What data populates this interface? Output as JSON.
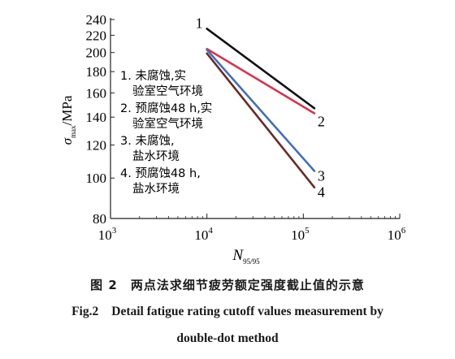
{
  "chart_data": {
    "type": "line",
    "x_scale": "log",
    "y_scale": "log",
    "xlim": [
      1000,
      1000000
    ],
    "ylim": [
      80,
      240
    ],
    "x_ticks": [
      1000,
      10000,
      100000,
      1000000
    ],
    "x_tick_labels": [
      {
        "base": "10",
        "exp": "3"
      },
      {
        "base": "10",
        "exp": "4"
      },
      {
        "base": "10",
        "exp": "5"
      },
      {
        "base": "10",
        "exp": "6"
      }
    ],
    "y_ticks": [
      80,
      100,
      120,
      140,
      160,
      180,
      200,
      220,
      240
    ],
    "y_tick_labels": [
      "80",
      "100",
      "120",
      "140",
      "160",
      "180",
      "200",
      "220",
      "240"
    ],
    "xlabel": {
      "main": "N",
      "sub": "95/95"
    },
    "ylabel": {
      "main": "σ",
      "sub": "max",
      "unit": "/MPa"
    },
    "grid": false,
    "legend_placement": "left",
    "series": [
      {
        "label": "1",
        "color": "#111111",
        "x": [
          10000,
          130000
        ],
        "y": [
          228,
          147
        ]
      },
      {
        "label": "2",
        "color": "#d8344e",
        "x": [
          10000,
          130000
        ],
        "y": [
          204,
          143
        ]
      },
      {
        "label": "3",
        "color": "#3f6fc0",
        "x": [
          10000,
          130000
        ],
        "y": [
          203,
          104
        ]
      },
      {
        "label": "4",
        "color": "#6b2a24",
        "x": [
          10000,
          130000
        ],
        "y": [
          199,
          95
        ]
      }
    ],
    "legend": [
      {
        "line1": "1. 未腐蚀,实",
        "line2": "验室空气环境"
      },
      {
        "line1": "2. 预腐蚀48 h,实",
        "line2": "验室空气环境"
      },
      {
        "line1": "3. 未腐蚀,",
        "line2": "盐水环境"
      },
      {
        "line1": "4. 预腐蚀48 h,",
        "line2": "盐水环境"
      }
    ]
  },
  "caption": {
    "cn_fig": "图 2",
    "cn_text": "两点法求细节疲劳额定强度截止值的示意",
    "en_fig": "Fig.2",
    "en_line1": "Detail fatigue rating cutoff values measurement by",
    "en_line2": "double-dot method"
  }
}
